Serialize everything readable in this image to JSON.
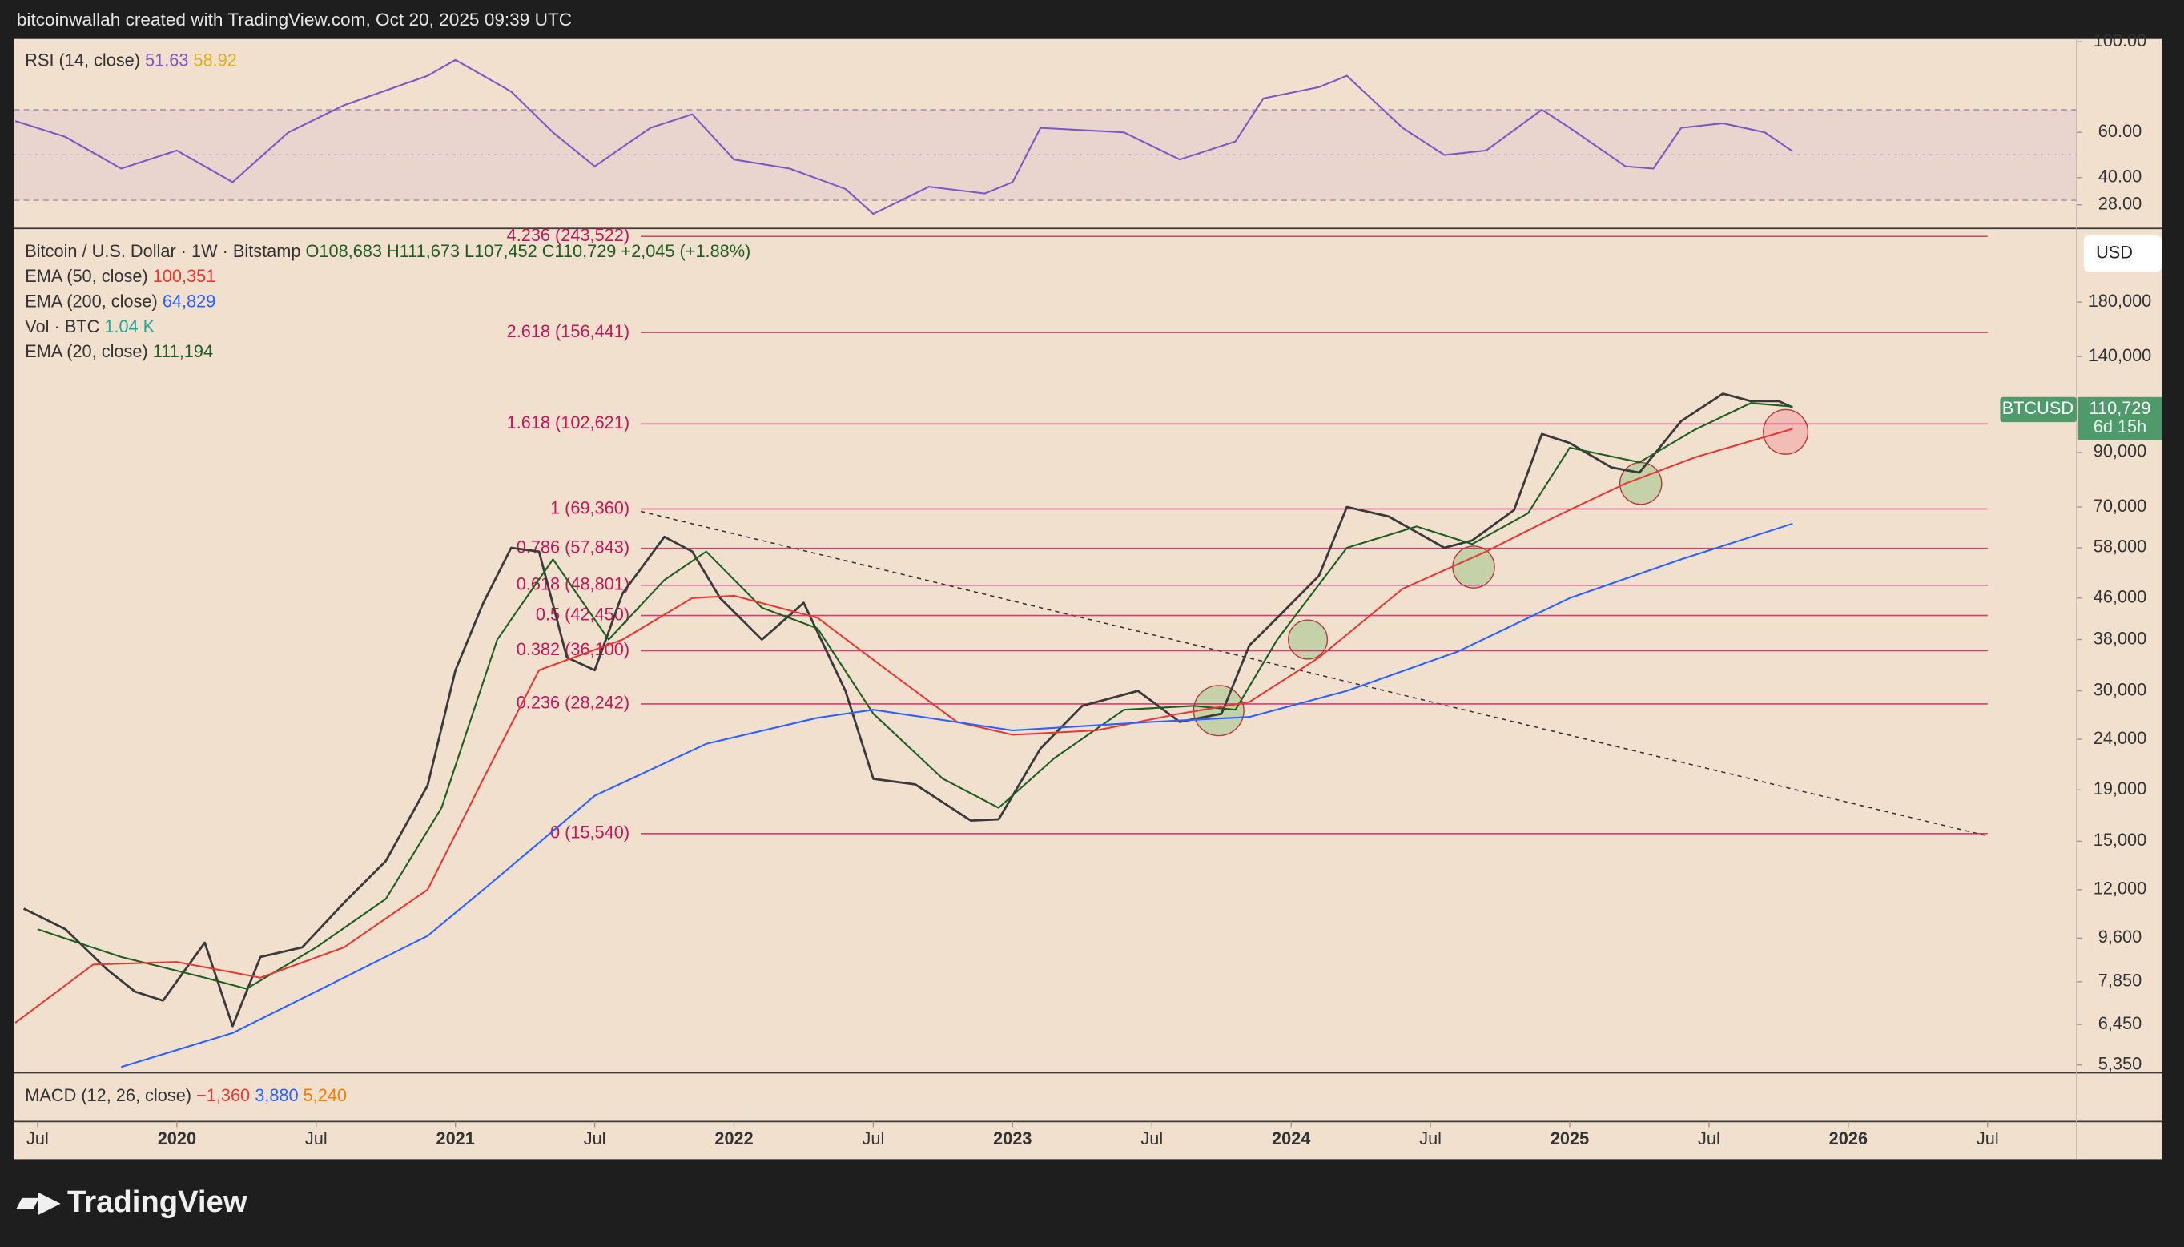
{
  "header": {
    "credit": "bitcoinwallah created with TradingView.com, Oct 20, 2025 09:39 UTC"
  },
  "footer": {
    "logo": "TradingView"
  },
  "macd": {
    "label": "MACD (12, 26, close)",
    "values": [
      "−1,360",
      "3,880",
      "5,240"
    ]
  },
  "chart_data": [
    {
      "type": "line",
      "xlim": [
        2019.415,
        2026.82
      ],
      "ylim": [
        20,
        100
      ],
      "yticks": [
        {
          "value": 100,
          "label": "100.00"
        },
        {
          "value": 60,
          "label": "60.00"
        },
        {
          "value": 40,
          "label": "40.00"
        },
        {
          "value": 28,
          "label": "28.00"
        }
      ],
      "legend_values": [
        "51.63",
        "58.92"
      ],
      "series": [
        {
          "name": "RSI (14, close)",
          "color": "#7e57c2",
          "x": [
            2019.42,
            2019.6,
            2019.8,
            2020.0,
            2020.2,
            2020.4,
            2020.6,
            2020.9,
            2021.0,
            2021.2,
            2021.35,
            2021.5,
            2021.7,
            2021.85,
            2022.0,
            2022.2,
            2022.4,
            2022.5,
            2022.7,
            2022.9,
            2023.0,
            2023.1,
            2023.4,
            2023.6,
            2023.8,
            2023.9,
            2024.1,
            2024.2,
            2024.4,
            2024.55,
            2024.7,
            2024.9,
            2025.0,
            2025.2,
            2025.3,
            2025.4,
            2025.55,
            2025.7,
            2025.8
          ],
          "values": [
            65,
            58,
            44,
            52,
            38,
            60,
            72,
            85,
            92,
            78,
            60,
            45,
            62,
            68,
            48,
            44,
            35,
            24,
            36,
            33,
            38,
            62,
            60,
            48,
            56,
            75,
            80,
            85,
            62,
            50,
            52,
            70,
            62,
            45,
            44,
            62,
            64,
            60,
            51.63
          ]
        }
      ]
    },
    {
      "type": "line",
      "title": "Bitcoin / U.S. Dollar · 1W · Bitstamp",
      "ohlc": "O108,683 H111,673 L107,452 C110,729 +2,045 (+1.88%)",
      "log_scale": true,
      "currency": "USD",
      "last_price_tag": {
        "symbol": "BTCUSD",
        "price": "110,729",
        "countdown": "6d 15h"
      },
      "volume_legend": {
        "name": "Vol · BTC",
        "value": "1.04 K",
        "color": "#26a69a"
      },
      "xlim": [
        2019.415,
        2026.82
      ],
      "xticks": [
        {
          "value": 2019.5,
          "label": "Jul"
        },
        2020,
        {
          "value": 2020.5,
          "label": "Jul"
        },
        2021,
        {
          "value": 2021.5,
          "label": "Jul"
        },
        2022,
        {
          "value": 2022.5,
          "label": "Jul"
        },
        2023,
        {
          "value": 2023.5,
          "label": "Jul"
        },
        2024,
        {
          "value": 2024.5,
          "label": "Jul"
        },
        2025,
        {
          "value": 2025.5,
          "label": "Jul"
        },
        2026,
        {
          "value": 2026.5,
          "label": "Jul"
        }
      ],
      "ylim": [
        5160,
        251000
      ],
      "yticks": [
        {
          "value": 180000,
          "label": "180,000"
        },
        {
          "value": 140000,
          "label": "140,000"
        },
        {
          "value": 90000,
          "label": "90,000"
        },
        {
          "value": 70000,
          "label": "70,000"
        },
        {
          "value": 58000,
          "label": "58,000"
        },
        {
          "value": 46000,
          "label": "46,000"
        },
        {
          "value": 38000,
          "label": "38,000"
        },
        {
          "value": 30000,
          "label": "30,000"
        },
        {
          "value": 24000,
          "label": "24,000"
        },
        {
          "value": 19000,
          "label": "19,000"
        },
        {
          "value": 15000,
          "label": "15,000"
        },
        {
          "value": 12000,
          "label": "12,000"
        },
        {
          "value": 9600,
          "label": "9,600"
        },
        {
          "value": 7850,
          "label": "7,850"
        },
        {
          "value": 6450,
          "label": "6,450"
        },
        {
          "value": 5350,
          "label": "5,350"
        }
      ],
      "fib_levels": [
        {
          "label": "4.236 (243,522)",
          "value": 243522
        },
        {
          "label": "2.618 (156,441)",
          "value": 156441
        },
        {
          "label": "1.618 (102,621)",
          "value": 102621
        },
        {
          "label": "1 (69,360)",
          "value": 69360
        },
        {
          "label": "0.786 (57,843)",
          "value": 57843
        },
        {
          "label": "0.618 (48,801)",
          "value": 48801
        },
        {
          "label": "0.5 (42,450)",
          "value": 42450
        },
        {
          "label": "0.382 (36,100)",
          "value": 36100
        },
        {
          "label": "0.236 (28,242)",
          "value": 28242
        },
        {
          "label": "0 (15,540)",
          "value": 15540
        }
      ],
      "fib_color": "#c2185b",
      "series": [
        {
          "name": "BTCUSD",
          "color": "#3a3a3a",
          "x": [
            2019.45,
            2019.6,
            2019.75,
            2019.85,
            2019.95,
            2020.1,
            2020.2,
            2020.3,
            2020.45,
            2020.6,
            2020.75,
            2020.9,
            2021.0,
            2021.1,
            2021.2,
            2021.3,
            2021.4,
            2021.5,
            2021.6,
            2021.75,
            2021.85,
            2021.95,
            2022.1,
            2022.25,
            2022.4,
            2022.5,
            2022.65,
            2022.85,
            2022.95,
            2023.1,
            2023.25,
            2023.45,
            2023.6,
            2023.75,
            2023.85,
            2023.95,
            2024.1,
            2024.2,
            2024.35,
            2024.55,
            2024.65,
            2024.8,
            2024.9,
            2025.0,
            2025.15,
            2025.25,
            2025.4,
            2025.55,
            2025.65,
            2025.75,
            2025.8
          ],
          "values": [
            11000,
            10000,
            8300,
            7500,
            7200,
            9400,
            6400,
            8800,
            9200,
            11300,
            13700,
            19400,
            33000,
            45000,
            58000,
            57000,
            35000,
            33000,
            47000,
            61000,
            57000,
            46000,
            38000,
            45000,
            30000,
            20000,
            19500,
            16500,
            16600,
            23000,
            28000,
            30000,
            26000,
            27000,
            37000,
            42000,
            51000,
            70000,
            67000,
            58000,
            60000,
            69000,
            98000,
            94000,
            84000,
            82000,
            104000,
            118000,
            114000,
            114000,
            110729
          ]
        },
        {
          "name": "EMA (20, close)",
          "color": "#1b5e20",
          "legend_value": "111,194",
          "x": [
            2019.5,
            2019.8,
            2020.1,
            2020.25,
            2020.5,
            2020.75,
            2020.95,
            2021.15,
            2021.35,
            2021.55,
            2021.75,
            2021.9,
            2022.1,
            2022.3,
            2022.5,
            2022.75,
            2022.95,
            2023.15,
            2023.4,
            2023.65,
            2023.8,
            2023.95,
            2024.2,
            2024.45,
            2024.65,
            2024.85,
            2025.0,
            2025.25,
            2025.45,
            2025.65,
            2025.8
          ],
          "values": [
            10000,
            8800,
            8000,
            7600,
            9200,
            11500,
            17500,
            38000,
            55000,
            38000,
            50000,
            57000,
            44000,
            40000,
            27000,
            20000,
            17500,
            22000,
            27500,
            28000,
            27500,
            38000,
            58000,
            64000,
            59000,
            68000,
            92000,
            86000,
            100000,
            113000,
            111194
          ]
        },
        {
          "name": "EMA (50, close)",
          "color": "#e53935",
          "legend_value": "100,351",
          "x": [
            2019.42,
            2019.7,
            2020.0,
            2020.3,
            2020.6,
            2020.9,
            2021.1,
            2021.3,
            2021.6,
            2021.85,
            2022.0,
            2022.3,
            2022.55,
            2022.8,
            2023.0,
            2023.3,
            2023.6,
            2023.85,
            2024.1,
            2024.4,
            2024.7,
            2024.95,
            2025.2,
            2025.45,
            2025.8
          ],
          "values": [
            6500,
            8500,
            8600,
            8000,
            9200,
            12000,
            20000,
            33000,
            38000,
            46000,
            46500,
            42000,
            33000,
            26000,
            24500,
            25000,
            27000,
            28500,
            35000,
            48000,
            57000,
            67000,
            78000,
            88000,
            100351
          ]
        },
        {
          "name": "EMA (200, close)",
          "color": "#2962ff",
          "legend_value": "64,829",
          "x": [
            2019.8,
            2020.2,
            2020.6,
            2020.9,
            2021.1,
            2021.5,
            2021.9,
            2022.3,
            2022.5,
            2023.0,
            2023.5,
            2023.85,
            2024.2,
            2024.6,
            2025.0,
            2025.4,
            2025.8
          ],
          "values": [
            5300,
            6200,
            8000,
            9700,
            12000,
            18500,
            23500,
            26500,
            27500,
            25000,
            26000,
            26600,
            30000,
            36000,
            46000,
            55000,
            64829
          ]
        }
      ]
    }
  ]
}
